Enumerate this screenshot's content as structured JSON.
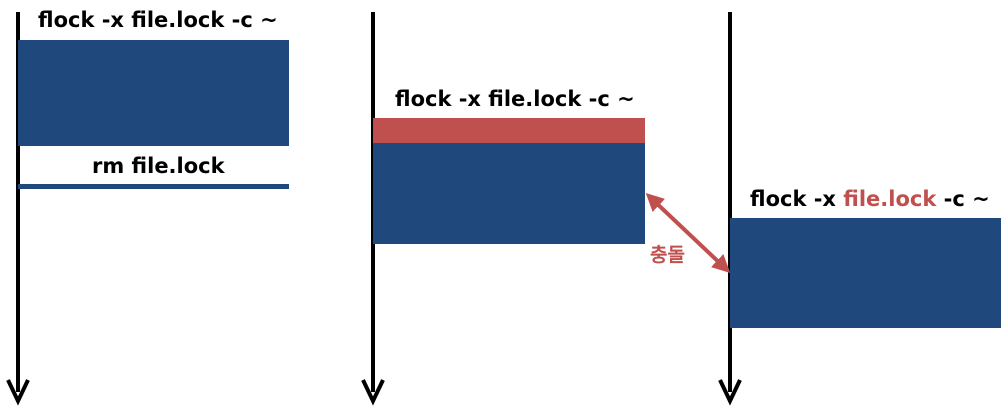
{
  "colors": {
    "lock_block": "#1f497d",
    "conflict": "#c0504d",
    "timeline": "#000000"
  },
  "process1": {
    "command": "flock -x file.lock -c ~",
    "remove_command": "rm file.lock"
  },
  "process2": {
    "command": "flock -x file.lock -c ~"
  },
  "process3": {
    "command_prefix": "flock -x ",
    "command_file": "file.lock",
    "command_suffix": " -c ~"
  },
  "conflict": {
    "label": "충돌"
  }
}
